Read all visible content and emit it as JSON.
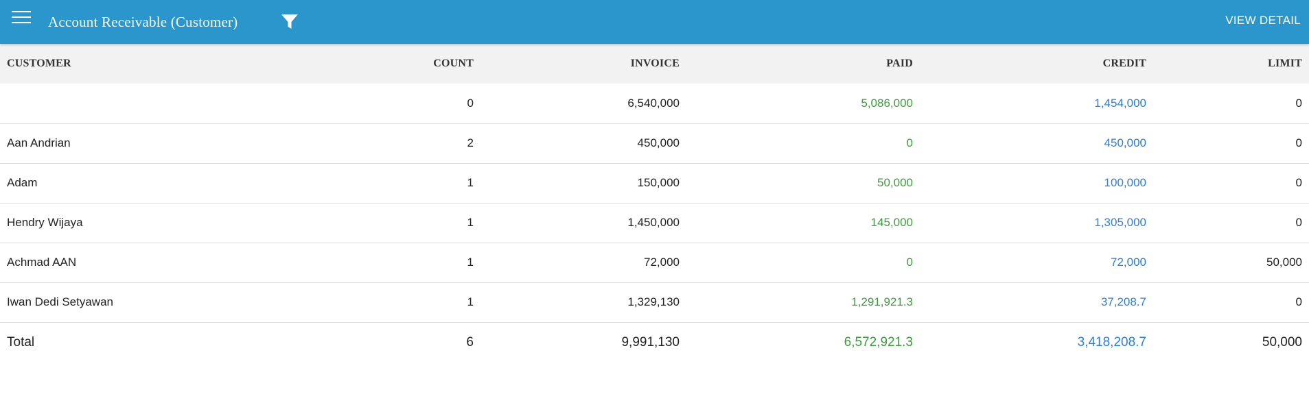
{
  "header": {
    "title": "Account Receivable (Customer)",
    "view_detail_label": "VIEW DETAIL"
  },
  "table": {
    "columns": [
      "CUSTOMER",
      "COUNT",
      "INVOICE",
      "PAID",
      "CREDIT",
      "LIMIT"
    ],
    "rows": [
      {
        "customer": "",
        "count": "0",
        "invoice": "6,540,000",
        "paid": "5,086,000",
        "credit": "1,454,000",
        "limit": "0"
      },
      {
        "customer": "Aan Andrian",
        "count": "2",
        "invoice": "450,000",
        "paid": "0",
        "credit": "450,000",
        "limit": "0"
      },
      {
        "customer": "Adam",
        "count": "1",
        "invoice": "150,000",
        "paid": "50,000",
        "credit": "100,000",
        "limit": "0"
      },
      {
        "customer": "Hendry Wijaya",
        "count": "1",
        "invoice": "1,450,000",
        "paid": "145,000",
        "credit": "1,305,000",
        "limit": "0"
      },
      {
        "customer": "Achmad AAN",
        "count": "1",
        "invoice": "72,000",
        "paid": "0",
        "credit": "72,000",
        "limit": "50,000"
      },
      {
        "customer": "Iwan Dedi Setyawan",
        "count": "1",
        "invoice": "1,329,130",
        "paid": "1,291,921.3",
        "credit": "37,208.7",
        "limit": "0"
      }
    ],
    "total": {
      "label": "Total",
      "count": "6",
      "invoice": "9,991,130",
      "paid": "6,572,921.3",
      "credit": "3,418,208.7",
      "limit": "50,000"
    }
  },
  "colors": {
    "appbar": "#2a96cb",
    "paid": "#3a9e3a",
    "credit": "#2a7fd8"
  },
  "icons": {
    "menu": "menu-icon",
    "filter": "filter-icon"
  }
}
